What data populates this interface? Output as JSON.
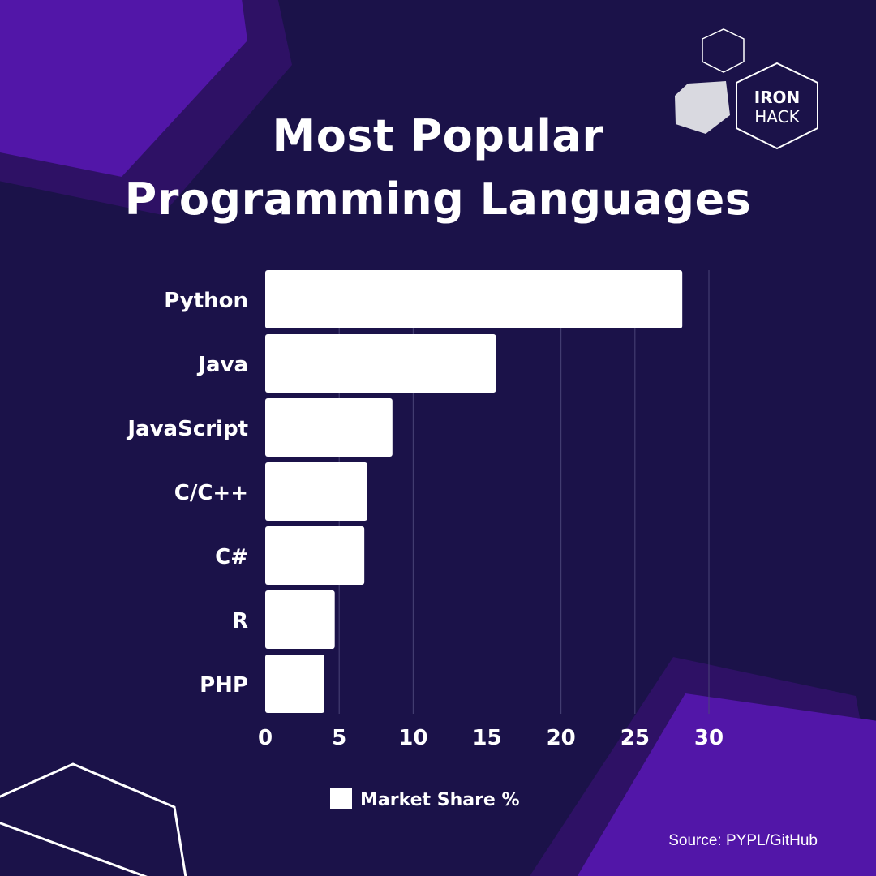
{
  "title_lines": [
    "Most Popular",
    "Programming Languages"
  ],
  "logo": {
    "line1": "IRON",
    "line2": "HACK"
  },
  "source": "Source: PYPL/GitHub",
  "colors": {
    "background": "#1b1249",
    "accent_purple": "#5216a8",
    "accent_dark_purple": "#2e1165",
    "bar": "#ffffff",
    "text": "#ffffff",
    "grey_hexagon": "#d9d9e0"
  },
  "chart_data": {
    "type": "bar",
    "orientation": "horizontal",
    "title": "Most Popular Programming Languages",
    "categories": [
      "Python",
      "Java",
      "JavaScript",
      "C/C++",
      "C#",
      "R",
      "PHP"
    ],
    "series": [
      {
        "name": "Market Share %",
        "values": [
          28.2,
          15.6,
          8.6,
          6.9,
          6.7,
          4.7,
          4.0
        ]
      }
    ],
    "x_ticks": [
      0,
      5,
      10,
      15,
      20,
      25,
      30
    ],
    "xlim": [
      0,
      30
    ],
    "grid": true,
    "legend": "bottom-center"
  }
}
